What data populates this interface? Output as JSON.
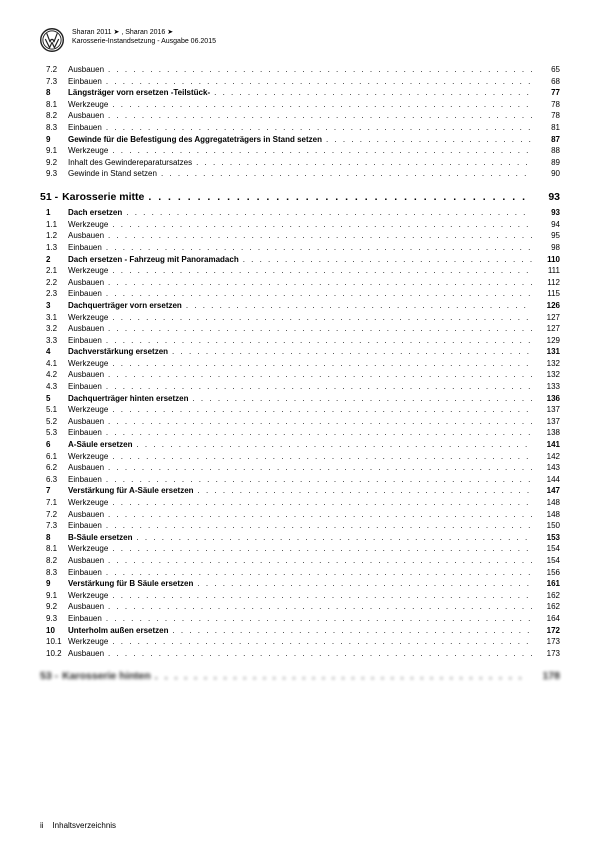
{
  "header": {
    "line1": "Sharan 2011 ➤ , Sharan 2016 ➤",
    "line2": "Karosserie-Instandsetzung - Ausgabe 06.2015"
  },
  "footer": {
    "pageRoman": "ii",
    "label": "Inhaltsverzeichnis"
  },
  "initialRows": [
    {
      "n": "7.2",
      "t": "Ausbauen",
      "p": "65",
      "b": false
    },
    {
      "n": "7.3",
      "t": "Einbauen",
      "p": "68",
      "b": false
    },
    {
      "n": "8",
      "t": "Längsträger vorn ersetzen -Teilstück-",
      "p": "77",
      "b": true
    },
    {
      "n": "8.1",
      "t": "Werkzeuge",
      "p": "78",
      "b": false
    },
    {
      "n": "8.2",
      "t": "Ausbauen",
      "p": "78",
      "b": false
    },
    {
      "n": "8.3",
      "t": "Einbauen",
      "p": "81",
      "b": false
    },
    {
      "n": "9",
      "t": "Gewinde für die Befestigung des Aggregateträgers in Stand setzen",
      "p": "87",
      "b": true
    },
    {
      "n": "9.1",
      "t": "Werkzeuge",
      "p": "88",
      "b": false
    },
    {
      "n": "9.2",
      "t": "Inhalt des Gewindereparatursatzes",
      "p": "89",
      "b": false
    },
    {
      "n": "9.3",
      "t": "Gewinde in Stand setzen",
      "p": "90",
      "b": false
    }
  ],
  "chapter51": {
    "num": "51 -",
    "title": "Karosserie mitte",
    "page": "93",
    "rows": [
      {
        "n": "1",
        "t": "Dach ersetzen",
        "p": "93",
        "b": true
      },
      {
        "n": "1.1",
        "t": "Werkzeuge",
        "p": "94",
        "b": false
      },
      {
        "n": "1.2",
        "t": "Ausbauen",
        "p": "95",
        "b": false
      },
      {
        "n": "1.3",
        "t": "Einbauen",
        "p": "98",
        "b": false
      },
      {
        "n": "2",
        "t": "Dach ersetzen - Fahrzeug mit Panoramadach",
        "p": "110",
        "b": true
      },
      {
        "n": "2.1",
        "t": "Werkzeuge",
        "p": "111",
        "b": false
      },
      {
        "n": "2.2",
        "t": "Ausbauen",
        "p": "112",
        "b": false
      },
      {
        "n": "2.3",
        "t": "Einbauen",
        "p": "115",
        "b": false
      },
      {
        "n": "3",
        "t": "Dachquerträger vorn ersetzen",
        "p": "126",
        "b": true
      },
      {
        "n": "3.1",
        "t": "Werkzeuge",
        "p": "127",
        "b": false
      },
      {
        "n": "3.2",
        "t": "Ausbauen",
        "p": "127",
        "b": false
      },
      {
        "n": "3.3",
        "t": "Einbauen",
        "p": "129",
        "b": false
      },
      {
        "n": "4",
        "t": "Dachverstärkung ersetzen",
        "p": "131",
        "b": true
      },
      {
        "n": "4.1",
        "t": "Werkzeuge",
        "p": "132",
        "b": false
      },
      {
        "n": "4.2",
        "t": "Ausbauen",
        "p": "132",
        "b": false
      },
      {
        "n": "4.3",
        "t": "Einbauen",
        "p": "133",
        "b": false
      },
      {
        "n": "5",
        "t": "Dachquerträger hinten ersetzen",
        "p": "136",
        "b": true
      },
      {
        "n": "5.1",
        "t": "Werkzeuge",
        "p": "137",
        "b": false
      },
      {
        "n": "5.2",
        "t": "Ausbauen",
        "p": "137",
        "b": false
      },
      {
        "n": "5.3",
        "t": "Einbauen",
        "p": "138",
        "b": false
      },
      {
        "n": "6",
        "t": "A-Säule ersetzen",
        "p": "141",
        "b": true
      },
      {
        "n": "6.1",
        "t": "Werkzeuge",
        "p": "142",
        "b": false
      },
      {
        "n": "6.2",
        "t": "Ausbauen",
        "p": "143",
        "b": false
      },
      {
        "n": "6.3",
        "t": "Einbauen",
        "p": "144",
        "b": false
      },
      {
        "n": "7",
        "t": "Verstärkung für A-Säule ersetzen",
        "p": "147",
        "b": true
      },
      {
        "n": "7.1",
        "t": "Werkzeuge",
        "p": "148",
        "b": false
      },
      {
        "n": "7.2",
        "t": "Ausbauen",
        "p": "148",
        "b": false
      },
      {
        "n": "7.3",
        "t": "Einbauen",
        "p": "150",
        "b": false
      },
      {
        "n": "8",
        "t": "B-Säule ersetzen",
        "p": "153",
        "b": true
      },
      {
        "n": "8.1",
        "t": "Werkzeuge",
        "p": "154",
        "b": false
      },
      {
        "n": "8.2",
        "t": "Ausbauen",
        "p": "154",
        "b": false
      },
      {
        "n": "8.3",
        "t": "Einbauen",
        "p": "156",
        "b": false
      },
      {
        "n": "9",
        "t": "Verstärkung für B Säule ersetzen",
        "p": "161",
        "b": true
      },
      {
        "n": "9.1",
        "t": "Werkzeuge",
        "p": "162",
        "b": false
      },
      {
        "n": "9.2",
        "t": "Ausbauen",
        "p": "162",
        "b": false
      },
      {
        "n": "9.3",
        "t": "Einbauen",
        "p": "164",
        "b": false
      },
      {
        "n": "10",
        "t": "Unterholm außen ersetzen",
        "p": "172",
        "b": true
      },
      {
        "n": "10.1",
        "t": "Werkzeuge",
        "p": "173",
        "b": false
      },
      {
        "n": "10.2",
        "t": "Ausbauen",
        "p": "173",
        "b": false
      }
    ]
  },
  "chapter53": {
    "num": "53 -",
    "title": "Karosserie hinten",
    "page": "178"
  }
}
